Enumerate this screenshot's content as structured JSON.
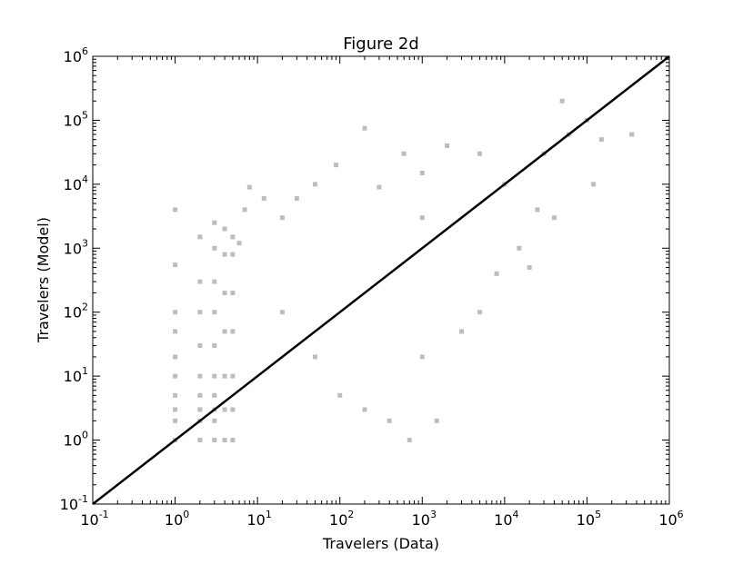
{
  "chart_data": {
    "type": "scatter",
    "title": "Figure 2d",
    "xlabel": "Travelers (Data)",
    "ylabel": "Travelers (Model)",
    "xscale": "log",
    "yscale": "log",
    "xlim": [
      0.1,
      1000000
    ],
    "ylim": [
      0.1,
      1000000
    ],
    "x_ticks": [
      {
        "value": 0.1,
        "base": "10",
        "exp": "-1"
      },
      {
        "value": 1,
        "base": "10",
        "exp": "0"
      },
      {
        "value": 10,
        "base": "10",
        "exp": "1"
      },
      {
        "value": 100,
        "base": "10",
        "exp": "2"
      },
      {
        "value": 1000,
        "base": "10",
        "exp": "3"
      },
      {
        "value": 10000,
        "base": "10",
        "exp": "4"
      },
      {
        "value": 100000,
        "base": "10",
        "exp": "5"
      },
      {
        "value": 1000000,
        "base": "10",
        "exp": "6"
      }
    ],
    "y_ticks": [
      {
        "value": 0.1,
        "base": "10",
        "exp": "-1"
      },
      {
        "value": 1,
        "base": "10",
        "exp": "0"
      },
      {
        "value": 10,
        "base": "10",
        "exp": "1"
      },
      {
        "value": 100,
        "base": "10",
        "exp": "2"
      },
      {
        "value": 1000,
        "base": "10",
        "exp": "3"
      },
      {
        "value": 10000,
        "base": "10",
        "exp": "4"
      },
      {
        "value": 100000,
        "base": "10",
        "exp": "5"
      },
      {
        "value": 1000000,
        "base": "10",
        "exp": "6"
      }
    ],
    "grid": false,
    "series": [
      {
        "marker": "square",
        "color": "#bdbdbd",
        "points": [
          [
            1,
            1
          ],
          [
            1,
            2
          ],
          [
            1,
            3
          ],
          [
            1,
            5
          ],
          [
            1,
            10
          ],
          [
            1,
            20
          ],
          [
            1,
            50
          ],
          [
            1,
            100
          ],
          [
            1,
            550
          ],
          [
            1,
            4000
          ],
          [
            2,
            1
          ],
          [
            2,
            2
          ],
          [
            2,
            3
          ],
          [
            2,
            5
          ],
          [
            2,
            10
          ],
          [
            2,
            30
          ],
          [
            2,
            100
          ],
          [
            2,
            300
          ],
          [
            2,
            1500
          ],
          [
            3,
            1
          ],
          [
            3,
            2
          ],
          [
            3,
            3
          ],
          [
            3,
            5
          ],
          [
            3,
            10
          ],
          [
            3,
            30
          ],
          [
            3,
            100
          ],
          [
            3,
            300
          ],
          [
            3,
            1000
          ],
          [
            3,
            2500
          ],
          [
            4,
            1
          ],
          [
            4,
            3
          ],
          [
            4,
            10
          ],
          [
            4,
            50
          ],
          [
            4,
            200
          ],
          [
            4,
            800
          ],
          [
            4,
            2000
          ],
          [
            5,
            1
          ],
          [
            5,
            3
          ],
          [
            5,
            10
          ],
          [
            5,
            50
          ],
          [
            5,
            200
          ],
          [
            5,
            800
          ],
          [
            5,
            1500
          ],
          [
            6,
            1200
          ],
          [
            7,
            4000
          ],
          [
            8,
            9000
          ],
          [
            12,
            6000
          ],
          [
            20,
            3000
          ],
          [
            30,
            6000
          ],
          [
            50,
            10000
          ],
          [
            20,
            100
          ],
          [
            50,
            20
          ],
          [
            100,
            5
          ],
          [
            200,
            3
          ],
          [
            400,
            2
          ],
          [
            700,
            1
          ],
          [
            90,
            20000
          ],
          [
            200,
            75000
          ],
          [
            300,
            9000
          ],
          [
            600,
            30000
          ],
          [
            1000,
            15000
          ],
          [
            1000,
            3000
          ],
          [
            1000,
            20
          ],
          [
            1500,
            2
          ],
          [
            2000,
            40000
          ],
          [
            3000,
            50
          ],
          [
            5000,
            100
          ],
          [
            5000,
            30000
          ],
          [
            8000,
            400
          ],
          [
            10000,
            10000
          ],
          [
            15000,
            1000
          ],
          [
            20000,
            500
          ],
          [
            25000,
            4000
          ],
          [
            30000,
            30000
          ],
          [
            40000,
            3000
          ],
          [
            50000,
            200000
          ],
          [
            60000,
            60000
          ],
          [
            100000,
            100000
          ],
          [
            120000,
            10000
          ],
          [
            150000,
            50000
          ],
          [
            350000,
            60000
          ]
        ]
      }
    ],
    "reference_line": {
      "x": [
        0.1,
        1000000
      ],
      "y": [
        0.1,
        1000000
      ],
      "color": "#000000"
    }
  }
}
